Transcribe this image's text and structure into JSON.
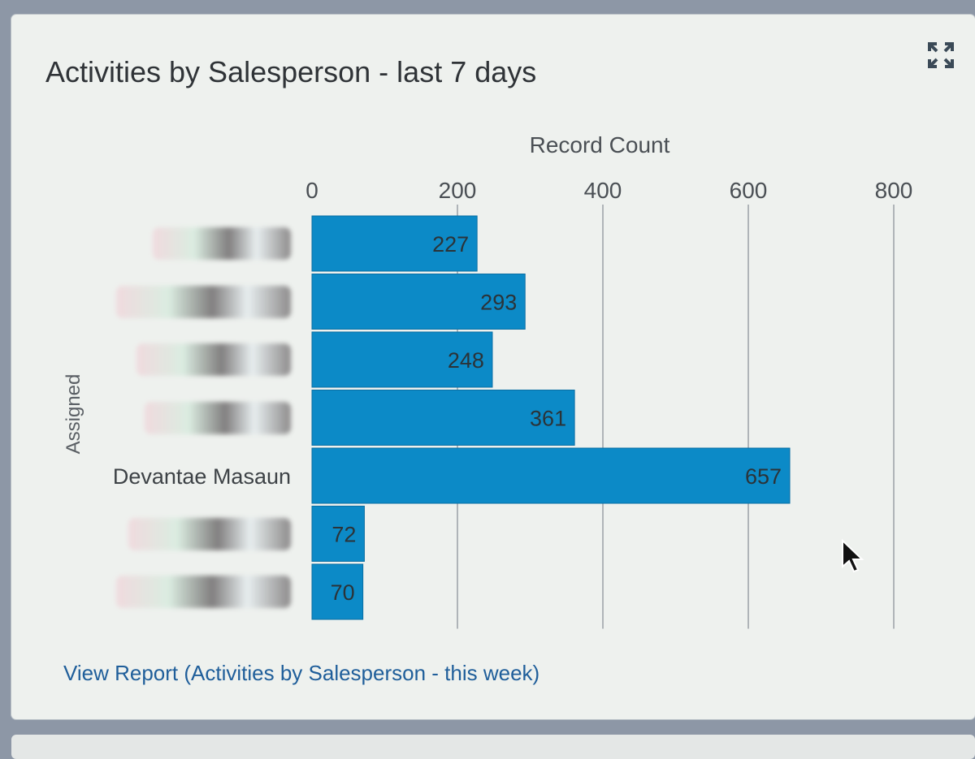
{
  "title": "Activities by Salesperson - last 7 days",
  "link_text": "View Report (Activities by Salesperson - this week)",
  "icons": {
    "expand": "expand-icon",
    "cursor": "mouse-pointer-icon"
  },
  "colors": {
    "bar": "#0c8ac7",
    "title": "#2f3337",
    "link": "#1f5e9a",
    "grid": "#9aa0a6"
  },
  "chart_data": {
    "type": "bar",
    "orientation": "horizontal",
    "xlabel": "Record Count",
    "ylabel": "Assigned",
    "xlim": [
      0,
      800
    ],
    "xticks": [
      0,
      200,
      400,
      600,
      800
    ],
    "categories": [
      "",
      "",
      "",
      "",
      "Devantae Masaun",
      "",
      ""
    ],
    "values": [
      227,
      293,
      248,
      361,
      657,
      72,
      70
    ],
    "data_labels": true,
    "grid": true
  }
}
